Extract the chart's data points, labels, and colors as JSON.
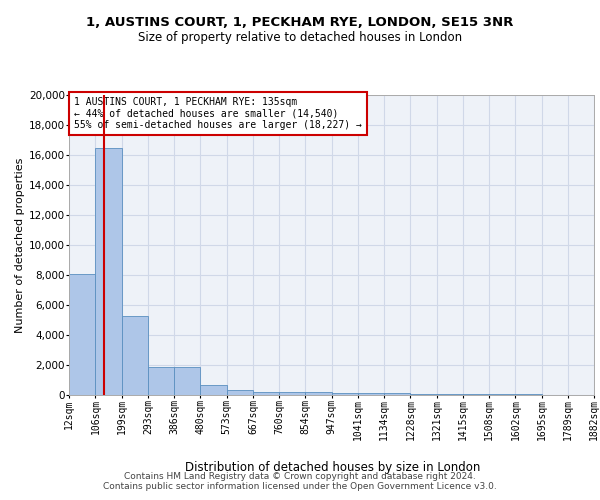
{
  "title1": "1, AUSTINS COURT, 1, PECKHAM RYE, LONDON, SE15 3NR",
  "title2": "Size of property relative to detached houses in London",
  "xlabel": "Distribution of detached houses by size in London",
  "ylabel": "Number of detached properties",
  "bin_edges": [
    12,
    106,
    199,
    293,
    386,
    480,
    573,
    667,
    760,
    854,
    947,
    1041,
    1134,
    1228,
    1321,
    1415,
    1508,
    1602,
    1695,
    1789,
    1882
  ],
  "bin_heights": [
    8100,
    16500,
    5300,
    1850,
    1850,
    700,
    320,
    230,
    200,
    175,
    150,
    130,
    110,
    90,
    70,
    55,
    45,
    38,
    32,
    25
  ],
  "bar_color": "#aec6e8",
  "bar_edge_color": "#5a8fc0",
  "grid_color": "#d0d8e8",
  "bg_color": "#eef2f8",
  "red_line_x": 135,
  "annotation_text": "1 AUSTINS COURT, 1 PECKHAM RYE: 135sqm\n← 44% of detached houses are smaller (14,540)\n55% of semi-detached houses are larger (18,227) →",
  "annotation_box_color": "#ffffff",
  "annotation_border_color": "#cc0000",
  "footer_text": "Contains HM Land Registry data © Crown copyright and database right 2024.\nContains public sector information licensed under the Open Government Licence v3.0.",
  "ylim": [
    0,
    20000
  ],
  "title1_fontsize": 9.5,
  "title2_fontsize": 8.5,
  "xlabel_fontsize": 8.5,
  "ylabel_fontsize": 8,
  "tick_fontsize": 7,
  "annotation_fontsize": 7,
  "footer_fontsize": 6.5
}
